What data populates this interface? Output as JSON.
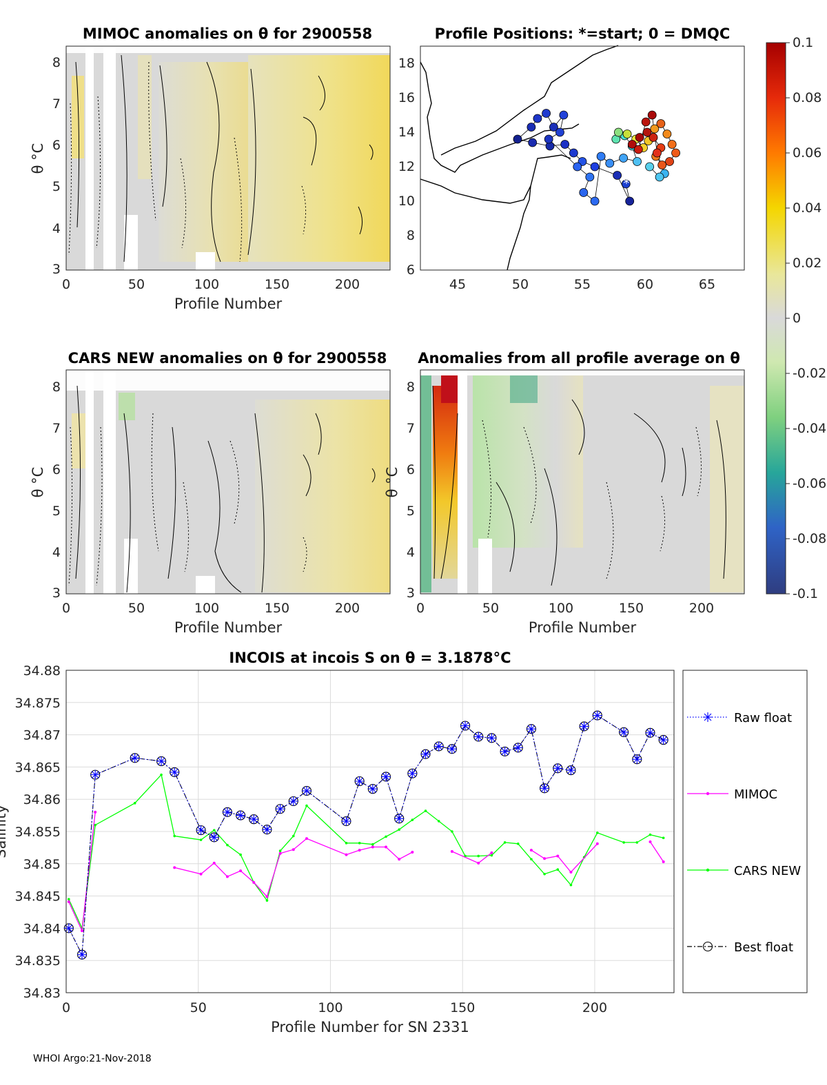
{
  "footer": "WHOI Argo:21-Nov-2018",
  "panels": {
    "mimoc": {
      "title": "MIMOC anomalies on θ  for 2900558",
      "xlabel": "Profile Number",
      "ylabel": "θ °C",
      "xticks": [
        "0",
        "50",
        "100",
        "150",
        "200"
      ],
      "yticks": [
        "3",
        "4",
        "5",
        "6",
        "7",
        "8"
      ]
    },
    "positions": {
      "title": "Profile Positions: *=start; 0 = DMQC",
      "xticks": [
        "45",
        "50",
        "55",
        "60",
        "65"
      ],
      "yticks": [
        "6",
        "8",
        "10",
        "12",
        "14",
        "16",
        "18"
      ]
    },
    "cars": {
      "title": "CARS NEW anomalies on θ for 2900558",
      "xlabel": "Profile Number",
      "ylabel": "θ °C",
      "xticks": [
        "0",
        "50",
        "100",
        "150",
        "200"
      ],
      "yticks": [
        "3",
        "4",
        "5",
        "6",
        "7",
        "8"
      ]
    },
    "allavg": {
      "title": "Anomalies from all profile average on θ",
      "xlabel": "Profile Number",
      "ylabel": "θ °C",
      "xticks": [
        "0",
        "50",
        "100",
        "150",
        "200"
      ],
      "yticks": [
        "3",
        "4",
        "5",
        "6",
        "7",
        "8"
      ]
    }
  },
  "colorbar": {
    "ticks": [
      "0.1",
      "0.08",
      "0.06",
      "0.04",
      "0.02",
      "0",
      "-0.02",
      "-0.04",
      "-0.06",
      "-0.08",
      "-0.1"
    ]
  },
  "chart_data": [
    {
      "type": "heatmap",
      "title": "MIMOC anomalies on θ  for 2900558",
      "xlabel": "Profile Number",
      "ylabel": "θ °C",
      "xlim": [
        0,
        230
      ],
      "ylim": [
        3,
        8.4
      ],
      "clim": [
        -0.1,
        0.1
      ]
    },
    {
      "type": "scatter",
      "title": "Profile Positions: *=start; 0 = DMQC",
      "xlim": [
        42,
        68
      ],
      "ylim": [
        6,
        19
      ],
      "start": [
        58.5,
        11.0
      ]
    },
    {
      "type": "heatmap",
      "title": "CARS NEW anomalies on θ for 2900558",
      "xlabel": "Profile Number",
      "ylabel": "θ °C",
      "xlim": [
        0,
        230
      ],
      "ylim": [
        3,
        8.4
      ],
      "clim": [
        -0.1,
        0.1
      ]
    },
    {
      "type": "heatmap",
      "title": "Anomalies from all profile average on θ",
      "xlabel": "Profile Number",
      "ylabel": "θ °C",
      "xlim": [
        0,
        230
      ],
      "ylim": [
        3,
        8.4
      ],
      "clim": [
        -0.1,
        0.1
      ]
    },
    {
      "type": "line",
      "title": "INCOIS at incois S on θ = 3.1878°C",
      "xlabel": "Profile Number for SN 2331",
      "ylabel": "Salinity",
      "xlim": [
        0,
        230
      ],
      "ylim": [
        34.83,
        34.88
      ],
      "xticks": [
        "0",
        "50",
        "100",
        "150",
        "200"
      ],
      "yticks": [
        "34.83",
        "34.835",
        "34.84",
        "34.845",
        "34.85",
        "34.855",
        "34.86",
        "34.865",
        "34.87",
        "34.875",
        "34.88"
      ],
      "legend": [
        "Raw float",
        "MIMOC",
        "CARS NEW",
        "Best float"
      ],
      "series": [
        {
          "name": "Raw float",
          "x": [
            1,
            6,
            11,
            26,
            36,
            41,
            51,
            56,
            61,
            66,
            71,
            76,
            81,
            86,
            91,
            106,
            111,
            116,
            121,
            126,
            131,
            136,
            141,
            146,
            151,
            156,
            161,
            166,
            171,
            176,
            181,
            186,
            191,
            196,
            201,
            211,
            216,
            221,
            226
          ],
          "y": [
            34.84,
            34.8359,
            34.8638,
            34.8664,
            34.8659,
            34.8642,
            34.8552,
            34.8541,
            34.858,
            34.8575,
            34.8569,
            34.8553,
            34.8585,
            34.8597,
            34.8613,
            34.8566,
            34.8628,
            34.8616,
            34.8635,
            34.857,
            34.864,
            34.867,
            34.8682,
            34.8678,
            34.8714,
            34.8697,
            34.8695,
            34.8674,
            34.868,
            34.8709,
            34.8617,
            34.8648,
            34.8645,
            34.8713,
            34.873,
            34.8704,
            34.8662,
            34.8703,
            34.8692
          ]
        },
        {
          "name": "MIMOC",
          "segments": [
            {
              "x": [
                1,
                6,
                11
              ],
              "y": [
                34.8441,
                34.8396,
                34.858
              ]
            },
            {
              "x": [
                41,
                51,
                56,
                61,
                66,
                71,
                76,
                81,
                86,
                91,
                106,
                111,
                116,
                121,
                126,
                131
              ],
              "y": [
                34.8494,
                34.8484,
                34.8501,
                34.848,
                34.8489,
                34.8471,
                34.8449,
                34.8516,
                34.8522,
                34.8539,
                34.8514,
                34.8521,
                34.8526,
                34.8526,
                34.8507,
                34.8518
              ]
            },
            {
              "x": [
                146,
                156,
                161
              ],
              "y": [
                34.8519,
                34.8501,
                34.8517
              ]
            },
            {
              "x": [
                176,
                181,
                186,
                191,
                201
              ],
              "y": [
                34.8521,
                34.8508,
                34.8512,
                34.8487,
                34.8531
              ]
            },
            {
              "x": [
                221,
                226
              ],
              "y": [
                34.8534,
                34.8503
              ]
            }
          ]
        },
        {
          "name": "CARS NEW",
          "x": [
            1,
            6,
            11,
            26,
            36,
            41,
            51,
            56,
            61,
            66,
            71,
            76,
            81,
            86,
            91,
            106,
            111,
            116,
            121,
            126,
            131,
            136,
            141,
            146,
            151,
            156,
            161,
            166,
            171,
            176,
            181,
            186,
            191,
            196,
            201,
            211,
            216,
            221,
            226
          ],
          "y": [
            34.8445,
            34.84,
            34.856,
            34.8594,
            34.8638,
            34.8543,
            34.8537,
            34.8552,
            34.8529,
            34.8514,
            34.8471,
            34.8443,
            34.852,
            34.8543,
            34.859,
            34.8532,
            34.8532,
            34.853,
            34.8542,
            34.8553,
            34.8568,
            34.8582,
            34.8566,
            34.855,
            34.8512,
            34.8512,
            34.8513,
            34.8533,
            34.8531,
            34.8507,
            34.8484,
            34.8491,
            34.8467,
            34.851,
            34.8548,
            34.8533,
            34.8533,
            34.8545,
            34.854
          ]
        },
        {
          "name": "Best float",
          "x": [
            1,
            6,
            11,
            26,
            36,
            41,
            51,
            56,
            61,
            66,
            71,
            76,
            81,
            86,
            91,
            106,
            111,
            116,
            121,
            126,
            131,
            136,
            141,
            146,
            151,
            156,
            161,
            166,
            171,
            176,
            181,
            186,
            191,
            196,
            201,
            211,
            216,
            221,
            226
          ],
          "y": [
            34.84,
            34.8359,
            34.8638,
            34.8664,
            34.8659,
            34.8642,
            34.8552,
            34.8541,
            34.858,
            34.8575,
            34.8569,
            34.8553,
            34.8585,
            34.8597,
            34.8613,
            34.8566,
            34.8628,
            34.8616,
            34.8635,
            34.857,
            34.864,
            34.867,
            34.8682,
            34.8678,
            34.8714,
            34.8697,
            34.8695,
            34.8674,
            34.868,
            34.8709,
            34.8617,
            34.8648,
            34.8645,
            34.8713,
            34.873,
            34.8704,
            34.8662,
            34.8703,
            34.8692
          ]
        }
      ],
      "colors": {
        "raw": "#0000ff",
        "mimoc": "#ff00ff",
        "cars": "#00ff00",
        "best": "#000000"
      }
    }
  ]
}
